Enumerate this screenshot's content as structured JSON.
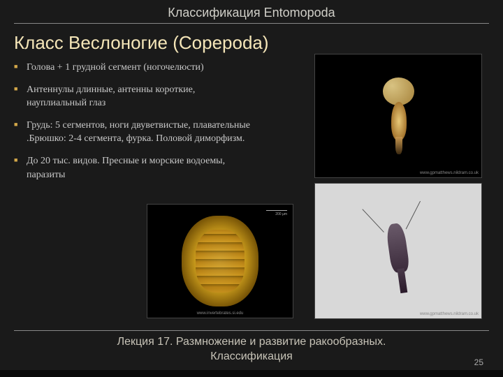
{
  "supertitle": "Классификация Entomopoda",
  "title": "Класс Веслоногие (Copepoda)",
  "bullets": [
    "Голова + 1 грудной сегмент (ногочелюсти)",
    "Антеннулы длинные, антенны короткие, науплиальный глаз",
    "Грудь: 5 сегментов, ноги двуветвистые, плавательные .Брюшко: 2-4 сегмента, фурка. Половой диморфизм.",
    "До 20 тыс. видов. Пресные и морские водоемы, паразиты"
  ],
  "images": {
    "img1": {
      "caption": "www.gpmatthews.nildram.co.uk"
    },
    "img2": {
      "caption": "www.gpmatthews.nildram.co.uk"
    },
    "img3": {
      "caption": "www.invertebrates.si.edu",
      "scale": "200 µm"
    }
  },
  "footer": {
    "line1": "Лекция 17. Размножение и развитие ракообразных.",
    "line2": "Классификация"
  },
  "page": "25",
  "colors": {
    "bg": "#1a1a1a",
    "title": "#f5e6b8",
    "bullet_marker": "#d4a84a",
    "text": "#c8c8c8",
    "rule": "#888888"
  }
}
